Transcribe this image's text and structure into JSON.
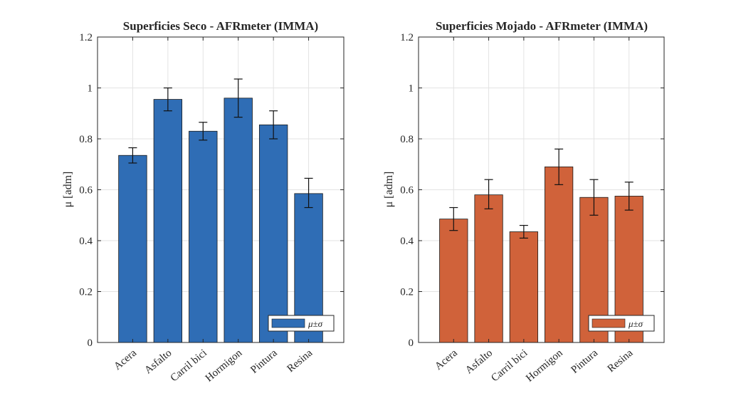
{
  "chart_data": [
    {
      "type": "bar",
      "title": "Superficies Seco - AFRmeter (IMMA)",
      "xlabel": "",
      "ylabel": "μ [adm]",
      "categories": [
        "Acera",
        "Asfalto",
        "Carril bici",
        "Hormigon",
        "Pintura",
        "Resina"
      ],
      "values": [
        0.735,
        0.955,
        0.83,
        0.96,
        0.855,
        0.585
      ],
      "error_low": [
        0.705,
        0.91,
        0.795,
        0.885,
        0.8,
        0.53
      ],
      "error_high": [
        0.765,
        1.0,
        0.865,
        1.035,
        0.91,
        0.645
      ],
      "ylim": [
        0,
        1.2
      ],
      "yticks": [
        0,
        0.2,
        0.4,
        0.6,
        0.8,
        1,
        1.2
      ],
      "ytick_labels": [
        "0",
        "0.2",
        "0.4",
        "0.6",
        "0.8",
        "1",
        "1.2"
      ],
      "grid": true,
      "bar_color": "#2f6db5",
      "legend": {
        "label": "μ±σ",
        "position": "bottom-right"
      }
    },
    {
      "type": "bar",
      "title": "Superficies Mojado - AFRmeter (IMMA)",
      "xlabel": "",
      "ylabel": "μ [adm]",
      "categories": [
        "Acera",
        "Asfalto",
        "Carril bici",
        "Hormigon",
        "Pintura",
        "Resina"
      ],
      "values": [
        0.485,
        0.58,
        0.435,
        0.69,
        0.57,
        0.575
      ],
      "error_low": [
        0.44,
        0.525,
        0.41,
        0.62,
        0.5,
        0.52
      ],
      "error_high": [
        0.53,
        0.64,
        0.46,
        0.76,
        0.64,
        0.63
      ],
      "ylim": [
        0,
        1.2
      ],
      "yticks": [
        0,
        0.2,
        0.4,
        0.6,
        0.8,
        1,
        1.2
      ],
      "ytick_labels": [
        "0",
        "0.2",
        "0.4",
        "0.6",
        "0.8",
        "1",
        "1.2"
      ],
      "grid": true,
      "bar_color": "#d0623a",
      "legend": {
        "label": "μ±σ",
        "position": "bottom-right"
      }
    }
  ]
}
